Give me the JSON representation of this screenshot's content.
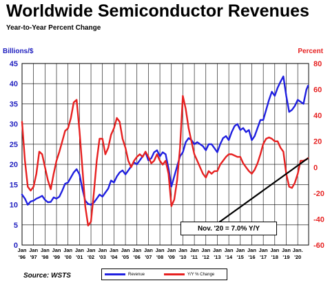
{
  "title": "Worldwide Semiconductor Revenues",
  "subtitle": "Year-to-Year Percent Change",
  "source": "Source: WSTS",
  "chart_data": {
    "type": "line",
    "title": "Worldwide Semiconductor Revenues",
    "subtitle": "Year-to-Year Percent Change",
    "left_axis": {
      "label": "Billions/$",
      "range": [
        0,
        45
      ],
      "ticks": [
        "0",
        "5",
        "10",
        "15",
        "20",
        "25",
        "30",
        "35",
        "40",
        "45"
      ],
      "color": "#1f1fbf"
    },
    "right_axis": {
      "label": "Percent",
      "range": [
        -60,
        80
      ],
      "ticks": [
        "-60",
        "-40",
        "-20",
        "0",
        "20",
        "40",
        "60",
        "80"
      ],
      "color": "#e62020"
    },
    "x_ticks": [
      "Jan '96",
      "Jan '97",
      "Jan '98",
      "Jan '99",
      "Jan '00",
      "Jan '01",
      "Jan '02",
      "Jan '03",
      "Jan '04",
      "Jan '05",
      "Jan '06",
      "Jan '07",
      "Jan '08",
      "Jan '09",
      "Jan '10",
      "Jan '11",
      "Jan '12",
      "Jan '13",
      "Jan '14",
      "Jan '15",
      "Jan '16",
      "Jan '17",
      "Jan '18",
      "Jan '19",
      "Jan. '20"
    ],
    "x_range": [
      1996,
      2020.95
    ],
    "grid": true,
    "legend_position": "bottom",
    "series": [
      {
        "name": "Revenue",
        "axis": "left",
        "color": "#1f1fe0",
        "points": [
          [
            1996.0,
            12.5
          ],
          [
            1996.25,
            11.5
          ],
          [
            1996.5,
            10.0
          ],
          [
            1996.75,
            10.8
          ],
          [
            1997.0,
            11.0
          ],
          [
            1997.25,
            11.5
          ],
          [
            1997.5,
            11.8
          ],
          [
            1997.75,
            12.2
          ],
          [
            1998.0,
            11.2
          ],
          [
            1998.25,
            10.6
          ],
          [
            1998.5,
            10.7
          ],
          [
            1998.75,
            11.8
          ],
          [
            1999.0,
            11.5
          ],
          [
            1999.25,
            12.0
          ],
          [
            1999.5,
            13.5
          ],
          [
            1999.75,
            15.2
          ],
          [
            2000.0,
            15.5
          ],
          [
            2000.5,
            18.0
          ],
          [
            2000.75,
            18.8
          ],
          [
            2001.0,
            17.5
          ],
          [
            2001.25,
            14.0
          ],
          [
            2001.5,
            11.0
          ],
          [
            2001.75,
            10.2
          ],
          [
            2002.0,
            10.0
          ],
          [
            2002.25,
            10.5
          ],
          [
            2002.5,
            11.5
          ],
          [
            2002.75,
            12.5
          ],
          [
            2003.0,
            12.0
          ],
          [
            2003.25,
            13.0
          ],
          [
            2003.5,
            14.0
          ],
          [
            2003.75,
            16.0
          ],
          [
            2004.0,
            15.5
          ],
          [
            2004.25,
            17.0
          ],
          [
            2004.5,
            18.0
          ],
          [
            2004.75,
            18.5
          ],
          [
            2005.0,
            17.5
          ],
          [
            2005.25,
            18.5
          ],
          [
            2005.5,
            19.5
          ],
          [
            2005.75,
            20.5
          ],
          [
            2006.0,
            20.0
          ],
          [
            2006.25,
            21.0
          ],
          [
            2006.5,
            22.0
          ],
          [
            2006.75,
            23.0
          ],
          [
            2007.0,
            21.0
          ],
          [
            2007.25,
            21.5
          ],
          [
            2007.5,
            23.0
          ],
          [
            2007.75,
            23.5
          ],
          [
            2008.0,
            22.0
          ],
          [
            2008.25,
            23.0
          ],
          [
            2008.5,
            22.5
          ],
          [
            2008.75,
            19.0
          ],
          [
            2009.0,
            14.5
          ],
          [
            2009.25,
            17.0
          ],
          [
            2009.5,
            19.5
          ],
          [
            2009.75,
            22.0
          ],
          [
            2010.0,
            23.0
          ],
          [
            2010.25,
            25.5
          ],
          [
            2010.5,
            26.5
          ],
          [
            2010.75,
            26.0
          ],
          [
            2011.0,
            25.0
          ],
          [
            2011.25,
            25.5
          ],
          [
            2011.5,
            25.0
          ],
          [
            2011.75,
            24.5
          ],
          [
            2012.0,
            23.5
          ],
          [
            2012.25,
            25.0
          ],
          [
            2012.5,
            25.0
          ],
          [
            2012.75,
            24.0
          ],
          [
            2013.0,
            23.0
          ],
          [
            2013.25,
            25.0
          ],
          [
            2013.5,
            26.5
          ],
          [
            2013.75,
            27.0
          ],
          [
            2014.0,
            26.0
          ],
          [
            2014.25,
            28.0
          ],
          [
            2014.5,
            29.5
          ],
          [
            2014.75,
            30.0
          ],
          [
            2015.0,
            28.5
          ],
          [
            2015.25,
            29.0
          ],
          [
            2015.5,
            28.0
          ],
          [
            2015.75,
            28.5
          ],
          [
            2016.0,
            26.0
          ],
          [
            2016.25,
            27.0
          ],
          [
            2016.5,
            29.0
          ],
          [
            2016.75,
            31.0
          ],
          [
            2017.0,
            31.0
          ],
          [
            2017.25,
            33.5
          ],
          [
            2017.5,
            36.0
          ],
          [
            2017.75,
            38.0
          ],
          [
            2018.0,
            37.0
          ],
          [
            2018.25,
            39.0
          ],
          [
            2018.5,
            40.5
          ],
          [
            2018.75,
            41.8
          ],
          [
            2019.0,
            37.0
          ],
          [
            2019.25,
            33.0
          ],
          [
            2019.5,
            33.5
          ],
          [
            2019.75,
            34.5
          ],
          [
            2020.0,
            36.0
          ],
          [
            2020.25,
            35.5
          ],
          [
            2020.5,
            35.0
          ],
          [
            2020.75,
            38.5
          ],
          [
            2020.9,
            39.5
          ]
        ]
      },
      {
        "name": "Y/Y % Change",
        "axis": "right",
        "color": "#e62020",
        "points": [
          [
            1996.0,
            35
          ],
          [
            1996.25,
            5
          ],
          [
            1996.5,
            -15
          ],
          [
            1996.75,
            -18
          ],
          [
            1997.0,
            -15
          ],
          [
            1997.25,
            -5
          ],
          [
            1997.5,
            12
          ],
          [
            1997.75,
            10
          ],
          [
            1998.0,
            0
          ],
          [
            1998.25,
            -10
          ],
          [
            1998.5,
            -17
          ],
          [
            1998.75,
            -5
          ],
          [
            1999.0,
            5
          ],
          [
            1999.25,
            12
          ],
          [
            1999.5,
            20
          ],
          [
            1999.75,
            28
          ],
          [
            2000.0,
            30
          ],
          [
            2000.25,
            38
          ],
          [
            2000.5,
            50
          ],
          [
            2000.75,
            52
          ],
          [
            2001.0,
            28
          ],
          [
            2001.25,
            0
          ],
          [
            2001.5,
            -30
          ],
          [
            2001.75,
            -45
          ],
          [
            2002.0,
            -42
          ],
          [
            2002.25,
            -20
          ],
          [
            2002.5,
            5
          ],
          [
            2002.75,
            22
          ],
          [
            2003.0,
            22
          ],
          [
            2003.25,
            10
          ],
          [
            2003.5,
            15
          ],
          [
            2003.75,
            25
          ],
          [
            2004.0,
            30
          ],
          [
            2004.25,
            38
          ],
          [
            2004.5,
            35
          ],
          [
            2004.75,
            22
          ],
          [
            2005.0,
            15
          ],
          [
            2005.25,
            5
          ],
          [
            2005.5,
            0
          ],
          [
            2005.75,
            5
          ],
          [
            2006.0,
            8
          ],
          [
            2006.25,
            10
          ],
          [
            2006.5,
            8
          ],
          [
            2006.75,
            12
          ],
          [
            2007.0,
            8
          ],
          [
            2007.25,
            3
          ],
          [
            2007.5,
            5
          ],
          [
            2007.75,
            10
          ],
          [
            2008.0,
            5
          ],
          [
            2008.25,
            2
          ],
          [
            2008.5,
            5
          ],
          [
            2008.75,
            -5
          ],
          [
            2009.0,
            -30
          ],
          [
            2009.25,
            -25
          ],
          [
            2009.5,
            -10
          ],
          [
            2009.75,
            15
          ],
          [
            2010.0,
            55
          ],
          [
            2010.25,
            45
          ],
          [
            2010.5,
            30
          ],
          [
            2010.75,
            20
          ],
          [
            2011.0,
            10
          ],
          [
            2011.25,
            5
          ],
          [
            2011.5,
            0
          ],
          [
            2011.75,
            -5
          ],
          [
            2012.0,
            -8
          ],
          [
            2012.25,
            -3
          ],
          [
            2012.5,
            -5
          ],
          [
            2012.75,
            -3
          ],
          [
            2013.0,
            -3
          ],
          [
            2013.25,
            2
          ],
          [
            2013.5,
            5
          ],
          [
            2013.75,
            8
          ],
          [
            2014.0,
            10
          ],
          [
            2014.25,
            10
          ],
          [
            2014.5,
            9
          ],
          [
            2014.75,
            8
          ],
          [
            2015.0,
            8
          ],
          [
            2015.25,
            3
          ],
          [
            2015.5,
            0
          ],
          [
            2015.75,
            -3
          ],
          [
            2016.0,
            -5
          ],
          [
            2016.25,
            -2
          ],
          [
            2016.5,
            3
          ],
          [
            2016.75,
            10
          ],
          [
            2017.0,
            18
          ],
          [
            2017.25,
            22
          ],
          [
            2017.5,
            23
          ],
          [
            2017.75,
            22
          ],
          [
            2018.0,
            20
          ],
          [
            2018.25,
            20
          ],
          [
            2018.5,
            15
          ],
          [
            2018.75,
            12
          ],
          [
            2019.0,
            -5
          ],
          [
            2019.25,
            -15
          ],
          [
            2019.5,
            -16
          ],
          [
            2019.75,
            -12
          ],
          [
            2020.0,
            -5
          ],
          [
            2020.25,
            5
          ],
          [
            2020.5,
            5
          ],
          [
            2020.75,
            6
          ],
          [
            2020.9,
            7
          ]
        ]
      }
    ],
    "annotation": {
      "text": "Nov. '20 = 7.0% Y/Y",
      "target": [
        2020.9,
        7.0
      ],
      "target_axis": "right"
    }
  }
}
